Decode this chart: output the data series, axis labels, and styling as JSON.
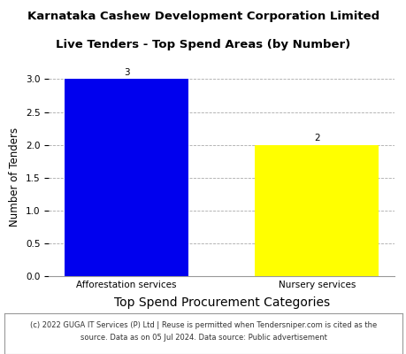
{
  "title_line1": "Karnataka Cashew Development Corporation Limited",
  "title_line2": "Live Tenders - Top Spend Areas (by Number)",
  "categories": [
    "Afforestation services",
    "Nursery services"
  ],
  "values": [
    3,
    2
  ],
  "bar_colors": [
    "#0000EE",
    "#FFFF00"
  ],
  "ylabel": "Number of Tenders",
  "xlabel": "Top Spend Procurement Categories",
  "ylim": [
    0,
    3.0
  ],
  "yticks": [
    0.0,
    0.5,
    1.0,
    1.5,
    2.0,
    2.5,
    3.0
  ],
  "footer_line1": "(c) 2022 GUGA IT Services (P) Ltd | Reuse is permitted when Tendersniper.com is cited as the",
  "footer_line2": "source. Data as on 05 Jul 2024. Data source: Public advertisement",
  "title_fontsize": 9.5,
  "label_fontsize": 8.5,
  "xlabel_fontsize": 10,
  "tick_fontsize": 7.5,
  "footer_fontsize": 6.0,
  "bar_label_fontsize": 7.5,
  "bar_width": 0.65
}
